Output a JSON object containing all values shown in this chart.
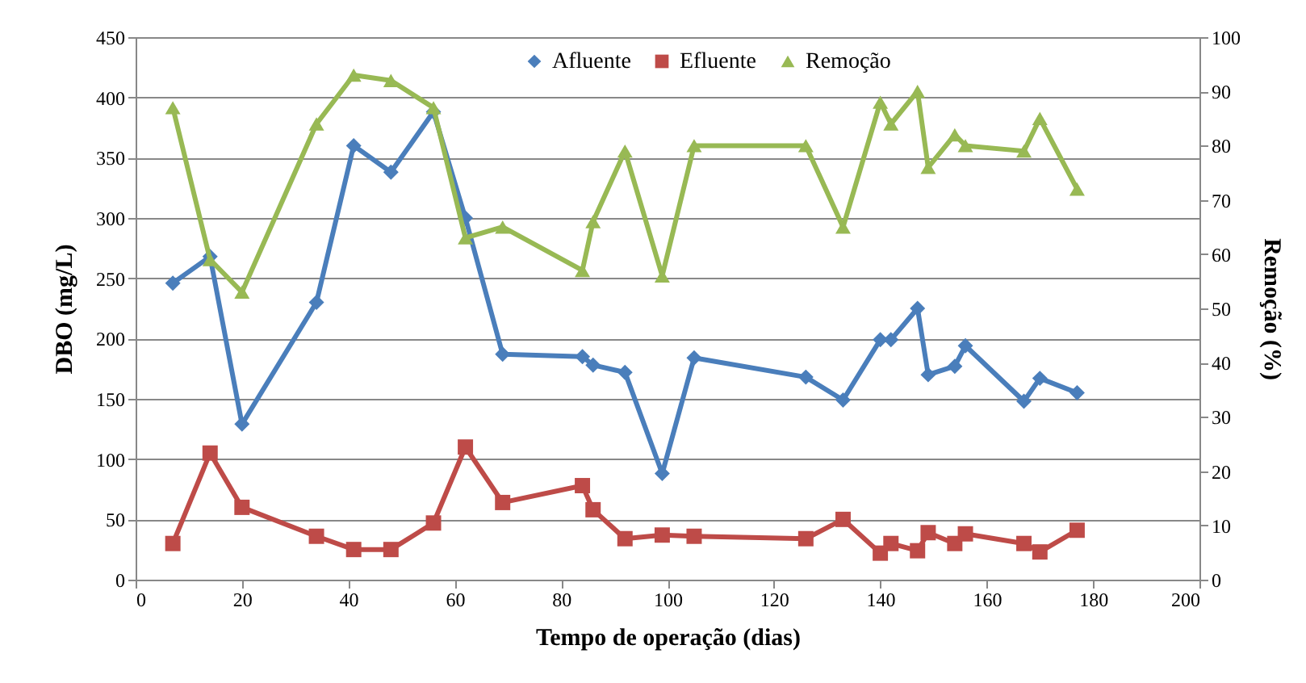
{
  "chart_data": {
    "type": "line",
    "xlabel": "Tempo de operação (dias)",
    "ylabel": "DBO (mg/L)",
    "y2label": "Remoção (%)",
    "x": [
      7,
      14,
      20,
      34,
      41,
      48,
      56,
      62,
      69,
      84,
      86,
      92,
      99,
      105,
      126,
      133,
      140,
      142,
      147,
      149,
      154,
      156,
      167,
      170,
      177
    ],
    "series": [
      {
        "name": "Afluente",
        "color": "#4a7ebb",
        "marker": "diamond",
        "values": [
          246,
          268,
          129,
          230,
          360,
          338,
          388,
          300,
          187,
          185,
          178,
          172,
          88,
          184,
          168,
          149,
          199,
          199,
          225,
          170,
          177,
          194,
          148,
          167,
          155
        ]
      },
      {
        "name": "Efluente",
        "color": "#be4b48",
        "marker": "square",
        "values": [
          30,
          105,
          60,
          36,
          25,
          25,
          47,
          110,
          64,
          78,
          58,
          34,
          37,
          36,
          34,
          50,
          22,
          30,
          24,
          39,
          30,
          38,
          30,
          23,
          41
        ]
      },
      {
        "name": "Remoção",
        "color": "#98b954",
        "marker": "triangle",
        "axis": "y2",
        "values": [
          87,
          59,
          53,
          84,
          93,
          92,
          87,
          63,
          65,
          57,
          66,
          79,
          56,
          80,
          80,
          65,
          88,
          84,
          90,
          76,
          82,
          80,
          79,
          85,
          72
        ]
      }
    ],
    "xlim": [
      0,
      200
    ],
    "xticks": [
      0,
      20,
      40,
      60,
      80,
      100,
      120,
      140,
      160,
      180,
      200
    ],
    "ylim": [
      0,
      450
    ],
    "yticks": [
      0,
      50,
      100,
      150,
      200,
      250,
      300,
      350,
      400,
      450
    ],
    "y2lim": [
      0,
      100
    ],
    "y2ticks": [
      0,
      10,
      20,
      30,
      40,
      50,
      60,
      70,
      80,
      90,
      100
    ],
    "grid": "y",
    "legend": "top",
    "line_style": "solid"
  }
}
